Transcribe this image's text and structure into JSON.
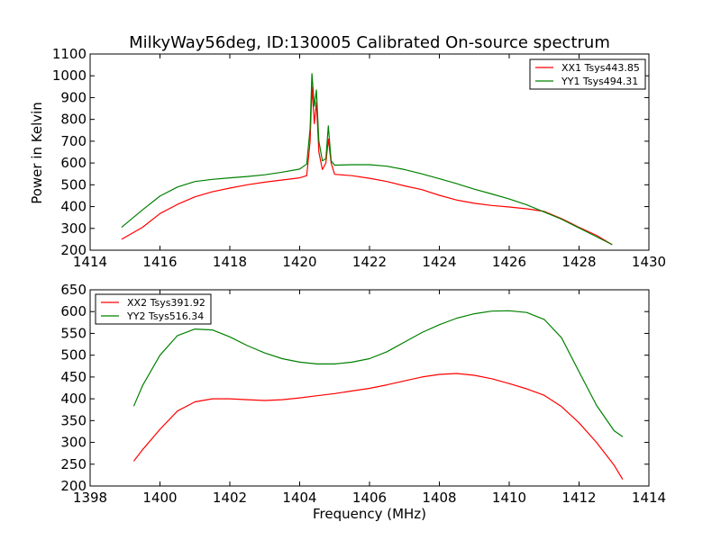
{
  "chart_data": [
    {
      "type": "line",
      "title": "MilkyWay56deg, ID:130005 Calibrated On-source spectrum",
      "xlabel": "",
      "ylabel": "Power in Kelvin",
      "xlim": [
        1414,
        1430
      ],
      "ylim": [
        200,
        1100
      ],
      "xticks": [
        1414,
        1416,
        1418,
        1420,
        1422,
        1424,
        1426,
        1428,
        1430
      ],
      "yticks": [
        200,
        300,
        400,
        500,
        600,
        700,
        800,
        900,
        1000,
        1100
      ],
      "grid": false,
      "legend_position": "top-right",
      "series": [
        {
          "name": "XX1 Tsys443.85",
          "color": "#ff0000",
          "x": [
            1414.9,
            1415.5,
            1416.0,
            1416.5,
            1417.0,
            1417.5,
            1418.0,
            1418.5,
            1419.0,
            1419.5,
            1420.0,
            1420.2,
            1420.3,
            1420.35,
            1420.42,
            1420.48,
            1420.55,
            1420.65,
            1420.75,
            1420.82,
            1420.9,
            1421.0,
            1421.5,
            1422.0,
            1422.5,
            1423.0,
            1423.5,
            1424.0,
            1424.5,
            1425.0,
            1425.5,
            1426.0,
            1426.5,
            1427.0,
            1427.5,
            1428.0,
            1428.5,
            1428.95
          ],
          "y": [
            250,
            305,
            368,
            410,
            445,
            468,
            485,
            500,
            512,
            522,
            532,
            542,
            700,
            950,
            780,
            880,
            650,
            570,
            600,
            710,
            600,
            548,
            542,
            530,
            515,
            495,
            478,
            452,
            430,
            415,
            405,
            398,
            390,
            378,
            345,
            305,
            268,
            225
          ]
        },
        {
          "name": "YY1 Tsys494.31",
          "color": "#008000",
          "x": [
            1414.9,
            1415.5,
            1416.0,
            1416.5,
            1417.0,
            1417.5,
            1418.0,
            1418.5,
            1419.0,
            1419.5,
            1420.0,
            1420.2,
            1420.3,
            1420.35,
            1420.42,
            1420.48,
            1420.55,
            1420.65,
            1420.75,
            1420.82,
            1420.9,
            1421.0,
            1421.5,
            1422.0,
            1422.5,
            1423.0,
            1423.5,
            1424.0,
            1424.5,
            1425.0,
            1425.5,
            1426.0,
            1426.5,
            1427.0,
            1427.5,
            1428.0,
            1428.5,
            1428.95
          ],
          "y": [
            305,
            385,
            448,
            490,
            515,
            525,
            532,
            538,
            546,
            558,
            572,
            595,
            760,
            1010,
            860,
            935,
            700,
            610,
            620,
            770,
            610,
            590,
            592,
            592,
            585,
            570,
            550,
            528,
            505,
            480,
            458,
            435,
            408,
            375,
            342,
            302,
            262,
            225
          ]
        }
      ]
    },
    {
      "type": "line",
      "title": "",
      "xlabel": "Frequency (MHz)",
      "ylabel": "",
      "xlim": [
        1398,
        1414
      ],
      "ylim": [
        200,
        650
      ],
      "xticks": [
        1398,
        1400,
        1402,
        1404,
        1406,
        1408,
        1410,
        1412,
        1414
      ],
      "yticks": [
        200,
        250,
        300,
        350,
        400,
        450,
        500,
        550,
        600,
        650
      ],
      "grid": false,
      "legend_position": "top-left",
      "series": [
        {
          "name": "XX2 Tsys391.92",
          "color": "#ff0000",
          "x": [
            1399.25,
            1399.5,
            1400.0,
            1400.5,
            1401.0,
            1401.5,
            1402.0,
            1402.5,
            1403.0,
            1403.5,
            1404.0,
            1404.5,
            1405.0,
            1405.5,
            1406.0,
            1406.5,
            1407.0,
            1407.5,
            1408.0,
            1408.5,
            1409.0,
            1409.5,
            1410.0,
            1410.5,
            1411.0,
            1411.5,
            1412.0,
            1412.5,
            1413.0,
            1413.25
          ],
          "y": [
            257,
            283,
            330,
            372,
            393,
            400,
            400,
            398,
            396,
            398,
            402,
            407,
            412,
            418,
            424,
            432,
            441,
            450,
            456,
            458,
            454,
            446,
            435,
            423,
            408,
            382,
            345,
            300,
            248,
            215
          ]
        },
        {
          "name": "YY2 Tsys516.34",
          "color": "#008000",
          "x": [
            1399.25,
            1399.5,
            1400.0,
            1400.5,
            1401.0,
            1401.5,
            1402.0,
            1402.5,
            1403.0,
            1403.5,
            1404.0,
            1404.5,
            1405.0,
            1405.5,
            1406.0,
            1406.5,
            1407.0,
            1407.5,
            1408.0,
            1408.5,
            1409.0,
            1409.5,
            1410.0,
            1410.5,
            1411.0,
            1411.5,
            1412.0,
            1412.5,
            1413.0,
            1413.25
          ],
          "y": [
            383,
            430,
            500,
            545,
            560,
            558,
            542,
            522,
            505,
            492,
            484,
            480,
            480,
            484,
            492,
            508,
            530,
            552,
            570,
            585,
            595,
            601,
            602,
            598,
            582,
            540,
            462,
            385,
            327,
            313
          ]
        }
      ]
    }
  ]
}
